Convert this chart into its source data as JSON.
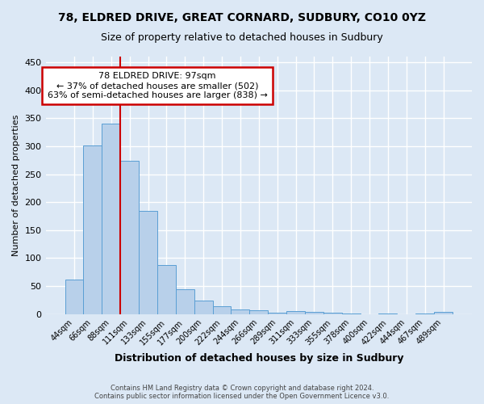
{
  "title1": "78, ELDRED DRIVE, GREAT CORNARD, SUDBURY, CO10 0YZ",
  "title2": "Size of property relative to detached houses in Sudbury",
  "xlabel": "Distribution of detached houses by size in Sudbury",
  "ylabel": "Number of detached properties",
  "categories": [
    "44sqm",
    "66sqm",
    "88sqm",
    "111sqm",
    "133sqm",
    "155sqm",
    "177sqm",
    "200sqm",
    "222sqm",
    "244sqm",
    "266sqm",
    "289sqm",
    "311sqm",
    "333sqm",
    "355sqm",
    "378sqm",
    "400sqm",
    "422sqm",
    "444sqm",
    "467sqm",
    "489sqm"
  ],
  "values": [
    62,
    302,
    340,
    274,
    185,
    88,
    45,
    24,
    14,
    8,
    7,
    3,
    5,
    4,
    2,
    1,
    0,
    1,
    0,
    1,
    4
  ],
  "bar_color": "#b8d0ea",
  "bar_edge_color": "#5a9fd4",
  "red_line_x": 2.5,
  "annotation_text": "78 ELDRED DRIVE: 97sqm\n← 37% of detached houses are smaller (502)\n63% of semi-detached houses are larger (838) →",
  "annotation_box_facecolor": "#ffffff",
  "annotation_box_edgecolor": "#cc0000",
  "footer1": "Contains HM Land Registry data © Crown copyright and database right 2024.",
  "footer2": "Contains public sector information licensed under the Open Government Licence v3.0.",
  "background_color": "#dce8f5",
  "grid_color": "#ffffff",
  "ylim": [
    0,
    460
  ],
  "yticks": [
    0,
    50,
    100,
    150,
    200,
    250,
    300,
    350,
    400,
    450
  ]
}
